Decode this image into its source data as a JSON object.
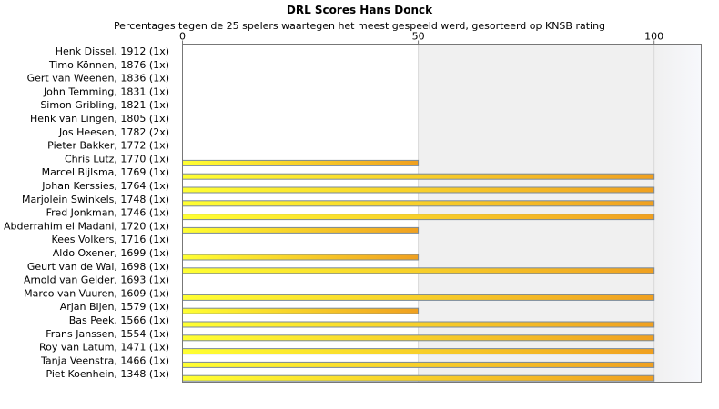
{
  "chart_data": {
    "type": "bar",
    "orientation": "horizontal",
    "title": "DRL Scores Hans Donck",
    "subtitle": "Percentages tegen de 25 spelers waartegen het meest gespeeld werd, gesorteerd op KNSB rating",
    "xlim": [
      0,
      110
    ],
    "xticks": [
      0,
      50,
      100
    ],
    "grid": "vertical",
    "colors": {
      "bar_start": "#ffff33",
      "bar_end": "#f0a020",
      "bar_outline": "#7a8a9a",
      "band": "#f0f0f0",
      "band_end": "#f7f8fc"
    },
    "categories": [
      "Henk Dissel, 1912 (1x)",
      "Timo Können, 1876 (1x)",
      "Gert van Weenen, 1836 (1x)",
      "John Temming, 1831 (1x)",
      "Simon Gribling, 1821 (1x)",
      "Henk van Lingen, 1805 (1x)",
      "Jos Heesen, 1782 (2x)",
      "Pieter Bakker, 1772 (1x)",
      "Chris Lutz, 1770 (1x)",
      "Marcel Bijlsma, 1769 (1x)",
      "Johan Kerssies, 1764 (1x)",
      "Marjolein Swinkels, 1748 (1x)",
      "Fred Jonkman, 1746 (1x)",
      "Abderrahim el Madani, 1720 (1x)",
      "Kees Volkers, 1716 (1x)",
      "Aldo Oxener, 1699 (1x)",
      "Geurt van de Wal, 1698 (1x)",
      "Arnold van Gelder, 1693 (1x)",
      "Marco van Vuuren, 1609 (1x)",
      "Arjan Bijen, 1579 (1x)",
      "Bas Peek, 1566 (1x)",
      "Frans Janssen, 1554 (1x)",
      "Roy van Latum, 1471 (1x)",
      "Tanja Veenstra, 1466 (1x)",
      "Piet Koenhein, 1348 (1x)"
    ],
    "values": [
      0,
      0,
      0,
      0,
      0,
      0,
      0,
      0,
      50,
      100,
      100,
      100,
      100,
      50,
      0,
      50,
      100,
      0,
      100,
      50,
      100,
      100,
      100,
      100,
      100
    ]
  }
}
